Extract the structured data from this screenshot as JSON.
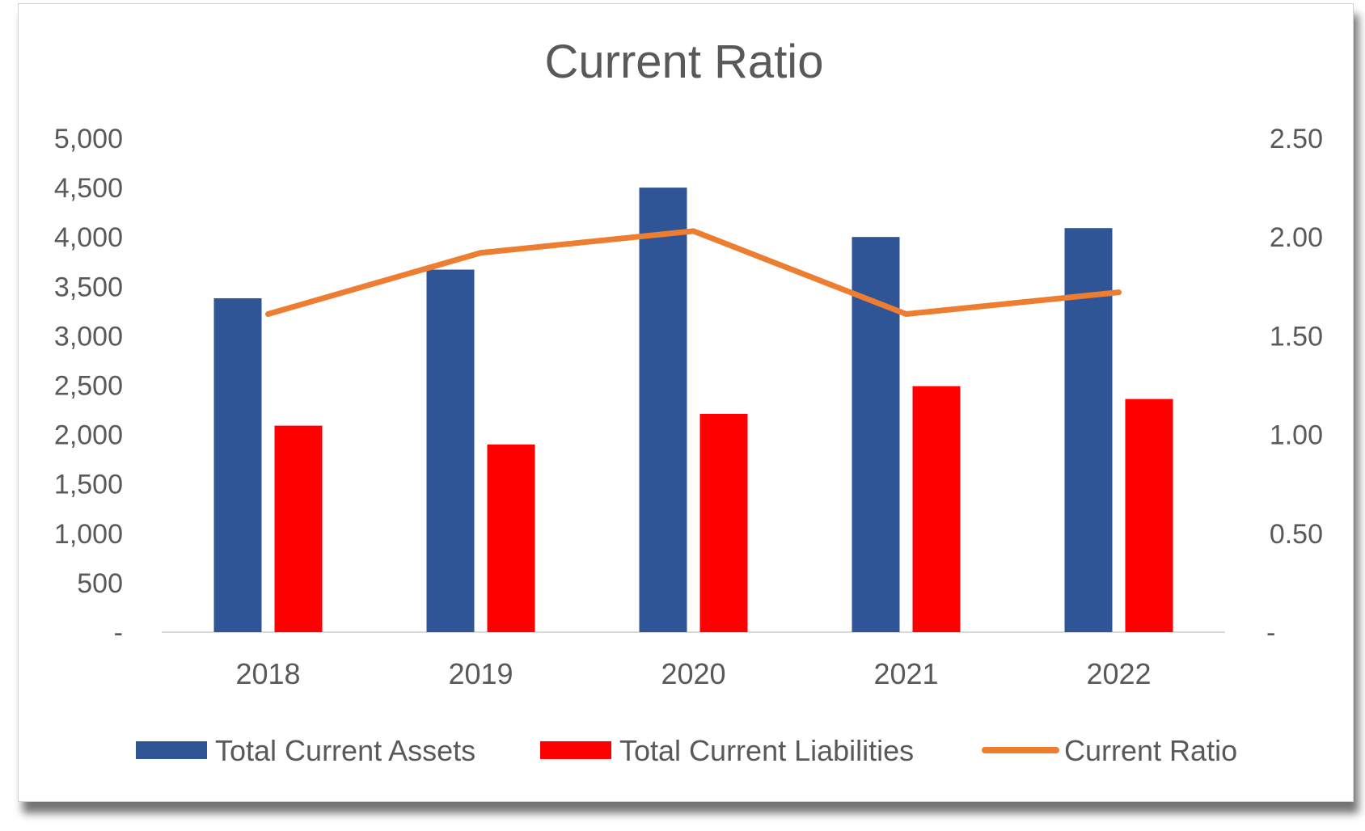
{
  "chart_data": {
    "type": "bar",
    "title": "Current Ratio",
    "categories": [
      "2018",
      "2019",
      "2020",
      "2021",
      "2022"
    ],
    "series": [
      {
        "name": "Total Current Assets",
        "type": "bar",
        "axis": "left",
        "color": "#2F5597",
        "values": [
          3380,
          3670,
          4500,
          4000,
          4090
        ]
      },
      {
        "name": "Total Current Liabilities",
        "type": "bar",
        "axis": "left",
        "color": "#FF0000",
        "values": [
          2090,
          1900,
          2210,
          2490,
          2360
        ]
      },
      {
        "name": "Current Ratio",
        "type": "line",
        "axis": "right",
        "color": "#ED7D31",
        "values": [
          1.61,
          1.92,
          2.03,
          1.61,
          1.72
        ]
      }
    ],
    "y_left": {
      "ylim": [
        0,
        5000
      ],
      "ticks": [
        "-",
        "500",
        "1,000",
        "1,500",
        "2,000",
        "2,500",
        "3,000",
        "3,500",
        "4,000",
        "4,500",
        "5,000"
      ]
    },
    "y_right": {
      "ylim": [
        0,
        2.5
      ],
      "ticks": [
        "-",
        "0.50",
        "1.00",
        "1.50",
        "2.00",
        "2.50"
      ]
    },
    "grid": false,
    "legend_position": "bottom"
  }
}
